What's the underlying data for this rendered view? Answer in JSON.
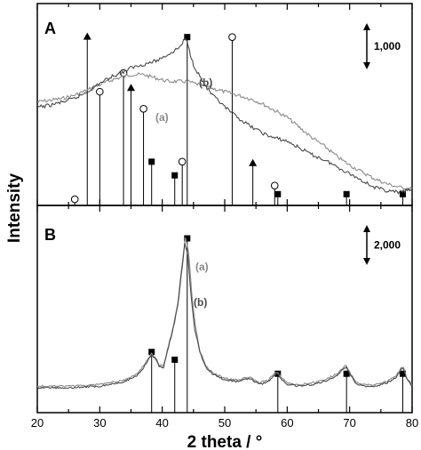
{
  "chart_data": [
    {
      "panel": "A",
      "type": "line",
      "xlim": [
        20,
        80
      ],
      "x_ticks": [
        "20",
        "30",
        "40",
        "50",
        "60",
        "70",
        "80"
      ],
      "scale_bar_label": "1,000",
      "series": [
        {
          "name": "(a)",
          "color": "#8a8a8a",
          "x": [
            20,
            22,
            24,
            26,
            28,
            30,
            32,
            33,
            34,
            35,
            36,
            37,
            38,
            39,
            40,
            41,
            42,
            43,
            44,
            45,
            46,
            48,
            50,
            52,
            54,
            56,
            58,
            60,
            62,
            64,
            66,
            68,
            70,
            72,
            74,
            76,
            78,
            80
          ],
          "y": [
            0.58,
            0.59,
            0.6,
            0.62,
            0.65,
            0.68,
            0.71,
            0.72,
            0.73,
            0.74,
            0.74,
            0.74,
            0.73,
            0.72,
            0.71,
            0.7,
            0.7,
            0.7,
            0.7,
            0.69,
            0.68,
            0.66,
            0.64,
            0.62,
            0.6,
            0.57,
            0.53,
            0.49,
            0.43,
            0.37,
            0.32,
            0.26,
            0.21,
            0.17,
            0.13,
            0.1,
            0.08,
            0.07
          ]
        },
        {
          "name": "(b)",
          "color": "#4a4a4a",
          "x": [
            20,
            22,
            24,
            26,
            28,
            30,
            32,
            34,
            35,
            36,
            37,
            38,
            39,
            40,
            41,
            42,
            43,
            43.6,
            44,
            44.5,
            45,
            46,
            47,
            48,
            50,
            52,
            54,
            56,
            57,
            58,
            59,
            60,
            62,
            64,
            66,
            68,
            70,
            72,
            74,
            76,
            78,
            80
          ],
          "y": [
            0.55,
            0.56,
            0.58,
            0.6,
            0.64,
            0.69,
            0.73,
            0.76,
            0.78,
            0.79,
            0.8,
            0.81,
            0.82,
            0.84,
            0.86,
            0.88,
            0.91,
            0.95,
            0.93,
            0.86,
            0.8,
            0.73,
            0.67,
            0.62,
            0.55,
            0.49,
            0.44,
            0.4,
            0.38,
            0.37,
            0.36,
            0.35,
            0.31,
            0.27,
            0.24,
            0.2,
            0.16,
            0.12,
            0.08,
            0.06,
            0.05,
            0.07
          ]
        }
      ],
      "reference_markers": [
        {
          "symbol": "triangle",
          "x": 28.0,
          "height": 0.96
        },
        {
          "symbol": "triangle",
          "x": 35.0,
          "height": 0.66
        },
        {
          "symbol": "triangle",
          "x": 54.5,
          "height": 0.22
        },
        {
          "symbol": "circle",
          "x": 26.0,
          "height": 0.01
        },
        {
          "symbol": "circle",
          "x": 30.0,
          "height": 0.64
        },
        {
          "symbol": "circle",
          "x": 33.8,
          "height": 0.75
        },
        {
          "symbol": "circle",
          "x": 37.0,
          "height": 0.54
        },
        {
          "symbol": "circle",
          "x": 43.2,
          "height": 0.23
        },
        {
          "symbol": "circle",
          "x": 51.2,
          "height": 0.96
        },
        {
          "symbol": "circle",
          "x": 58.0,
          "height": 0.09
        },
        {
          "symbol": "square",
          "x": 38.3,
          "height": 0.23
        },
        {
          "symbol": "square",
          "x": 42.0,
          "height": 0.15
        },
        {
          "symbol": "square",
          "x": 44.0,
          "height": 0.96
        },
        {
          "symbol": "square",
          "x": 58.5,
          "height": 0.04
        },
        {
          "symbol": "square",
          "x": 69.5,
          "height": 0.04
        },
        {
          "symbol": "square",
          "x": 78.5,
          "height": 0.04
        }
      ]
    },
    {
      "panel": "B",
      "type": "line",
      "xlim": [
        20,
        80
      ],
      "x_ticks": [
        "20",
        "30",
        "40",
        "50",
        "60",
        "70",
        "80"
      ],
      "scale_bar_label": "2,000",
      "series": [
        {
          "name": "(a)",
          "color": "#8a8a8a",
          "x": [
            20,
            25,
            30,
            34,
            36,
            37,
            37.8,
            38.3,
            38.8,
            39.5,
            40.2,
            41,
            41.8,
            42.5,
            43.2,
            43.7,
            44.2,
            44.7,
            45.3,
            46,
            47,
            48,
            50,
            52,
            54,
            55.5,
            57,
            58.1,
            58.5,
            59,
            60,
            62,
            64,
            66,
            68,
            69.2,
            69.5,
            70,
            71,
            72,
            74,
            76,
            77.5,
            78.3,
            78.6,
            79.2,
            80
          ],
          "y": [
            0.01,
            0.01,
            0.02,
            0.05,
            0.09,
            0.14,
            0.19,
            0.22,
            0.2,
            0.15,
            0.14,
            0.27,
            0.4,
            0.55,
            0.8,
            0.97,
            0.88,
            0.62,
            0.4,
            0.24,
            0.14,
            0.1,
            0.06,
            0.05,
            0.07,
            0.03,
            0.05,
            0.1,
            0.1,
            0.07,
            0.03,
            0.02,
            0.03,
            0.05,
            0.09,
            0.14,
            0.14,
            0.1,
            0.04,
            0.02,
            0.02,
            0.04,
            0.08,
            0.13,
            0.13,
            0.06,
            0.02
          ]
        },
        {
          "name": "(b)",
          "color": "#4a4a4a",
          "x": [
            20,
            25,
            30,
            34,
            36,
            37,
            37.8,
            38.3,
            38.8,
            39.5,
            40.2,
            41,
            41.8,
            42.5,
            43.2,
            43.6,
            44.1,
            44.6,
            45.2,
            46,
            47,
            48,
            50,
            52,
            54,
            55.5,
            57,
            58.1,
            58.5,
            59,
            60,
            62,
            64,
            66,
            68,
            69.2,
            69.5,
            70,
            71,
            72,
            74,
            76,
            77.5,
            78.3,
            78.6,
            79.2,
            80
          ],
          "y": [
            0.0,
            0.0,
            0.01,
            0.04,
            0.08,
            0.13,
            0.18,
            0.21,
            0.19,
            0.14,
            0.13,
            0.26,
            0.39,
            0.53,
            0.78,
            0.93,
            0.85,
            0.6,
            0.38,
            0.23,
            0.13,
            0.09,
            0.05,
            0.04,
            0.06,
            0.02,
            0.04,
            0.09,
            0.09,
            0.06,
            0.02,
            0.01,
            0.02,
            0.04,
            0.08,
            0.13,
            0.13,
            0.09,
            0.03,
            0.01,
            0.01,
            0.03,
            0.07,
            0.12,
            0.12,
            0.05,
            0.01
          ]
        }
      ],
      "reference_markers": [
        {
          "symbol": "square",
          "x": 38.3,
          "height": 0.23
        },
        {
          "symbol": "square",
          "x": 42.0,
          "height": 0.18
        },
        {
          "symbol": "square",
          "x": 44.0,
          "height": 0.96
        },
        {
          "symbol": "square",
          "x": 58.5,
          "height": 0.09
        },
        {
          "symbol": "square",
          "x": 69.5,
          "height": 0.09
        },
        {
          "symbol": "square",
          "x": 78.5,
          "height": 0.09
        }
      ]
    }
  ],
  "xlabel": "2 theta / °",
  "ylabel": "Intensity"
}
